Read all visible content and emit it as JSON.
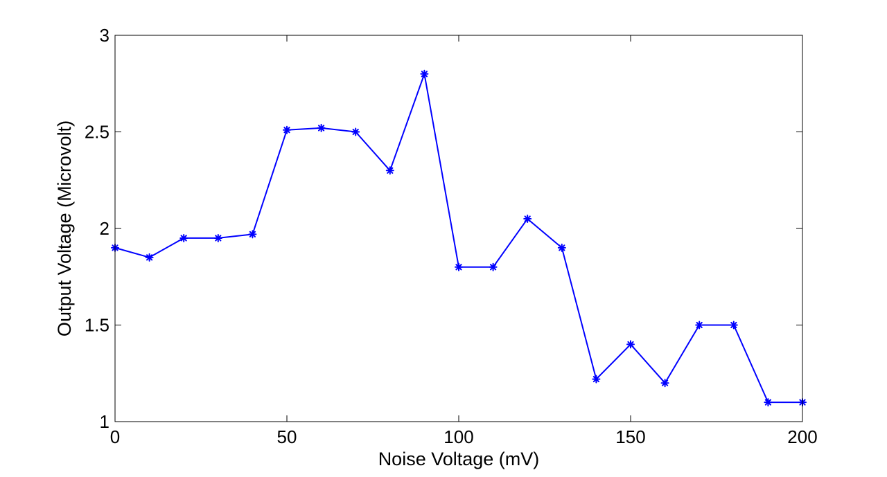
{
  "chart_data": {
    "type": "line",
    "title": "",
    "xlabel": "Noise Voltage (mV)",
    "ylabel": "Output Voltage (Microvolt)",
    "xlim": [
      0,
      200
    ],
    "ylim": [
      1,
      3
    ],
    "xticks": [
      0,
      50,
      100,
      150,
      200
    ],
    "yticks": [
      1,
      1.5,
      2,
      2.5,
      3
    ],
    "xtick_labels": [
      "0",
      "50",
      "100",
      "150",
      "200"
    ],
    "ytick_labels": [
      "1",
      "1.5",
      "2",
      "2.5",
      "3"
    ],
    "grid": false,
    "legend": "none",
    "series": [
      {
        "color": "#0000ff",
        "marker": "asterisk",
        "x": [
          0,
          10,
          20,
          30,
          40,
          50,
          60,
          70,
          80,
          90,
          100,
          110,
          120,
          130,
          140,
          150,
          160,
          170,
          180,
          190,
          200
        ],
        "y": [
          1.9,
          1.85,
          1.95,
          1.95,
          1.97,
          2.51,
          2.52,
          2.5,
          2.3,
          2.8,
          1.8,
          1.8,
          2.05,
          1.9,
          1.22,
          1.4,
          1.2,
          1.5,
          1.5,
          1.1,
          1.1
        ]
      }
    ]
  }
}
